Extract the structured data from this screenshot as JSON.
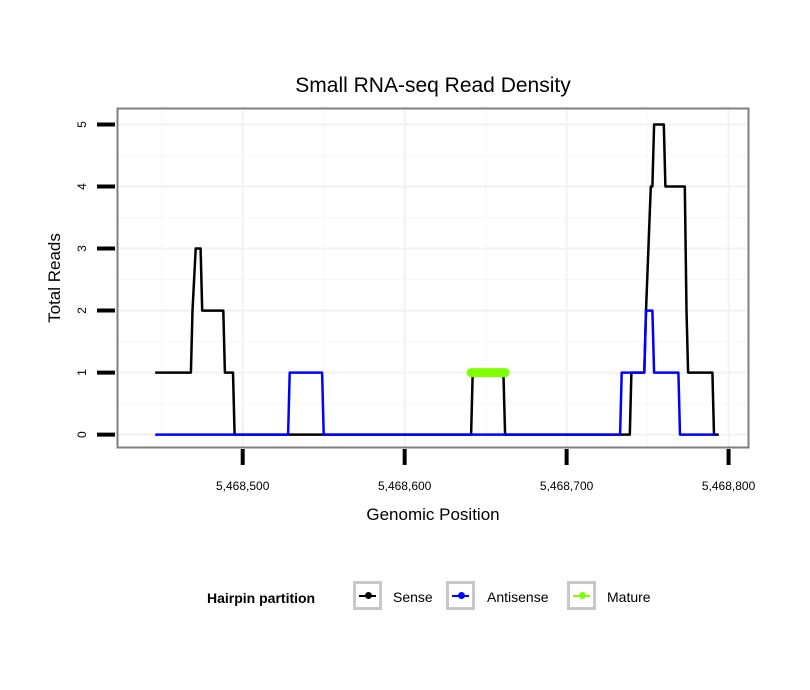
{
  "chart_data": {
    "type": "line",
    "step": true,
    "title": "Small RNA-seq Read Density",
    "xlabel": "Genomic Position",
    "ylabel": "Total Reads",
    "xlim": [
      5468423,
      5468812
    ],
    "ylim": [
      -0.2,
      5.25
    ],
    "xticks": [
      5468500,
      5468600,
      5468700,
      5468800
    ],
    "xtick_labels": [
      "5,468,500",
      "5,468,600",
      "5,468,700",
      "5,468,800"
    ],
    "yticks": [
      0,
      1,
      2,
      3,
      4,
      5
    ],
    "ytick_labels": [
      "0",
      "1",
      "2",
      "3",
      "4",
      "5"
    ],
    "grid": true,
    "legend": {
      "title": "Hairpin partition",
      "placement": "bottom",
      "entries": [
        "Sense",
        "Antisense",
        "Mature"
      ]
    },
    "series": [
      {
        "name": "Sense",
        "color": "#000000",
        "x": [
          5468446,
          5468468,
          5468469,
          5468471,
          5468474,
          5468475,
          5468488,
          5468489,
          5468494,
          5468495,
          5468641,
          5468642,
          5468661,
          5468662,
          5468739,
          5468740,
          5468748,
          5468749,
          5468752,
          5468753,
          5468754,
          5468760,
          5468761,
          5468773,
          5468774,
          5468775,
          5468790,
          5468791,
          5468794
        ],
        "y": [
          1,
          1,
          2,
          3,
          3,
          2,
          2,
          1,
          1,
          0,
          0,
          1,
          1,
          0,
          0,
          1,
          1,
          2,
          4,
          4,
          5,
          5,
          4,
          4,
          2,
          1,
          1,
          0,
          0
        ]
      },
      {
        "name": "Antisense",
        "color": "#0000ff",
        "x": [
          5468446,
          5468528,
          5468529,
          5468549,
          5468550,
          5468733,
          5468734,
          5468748,
          5468749,
          5468753,
          5468754,
          5468769,
          5468770,
          5468792
        ],
        "y": [
          0,
          0,
          1,
          1,
          0,
          0,
          1,
          1,
          2,
          2,
          1,
          1,
          0,
          0
        ]
      },
      {
        "name": "Mature",
        "color": "#7fff00",
        "x": [
          5468641,
          5468662
        ],
        "y": [
          1,
          1
        ]
      }
    ]
  }
}
